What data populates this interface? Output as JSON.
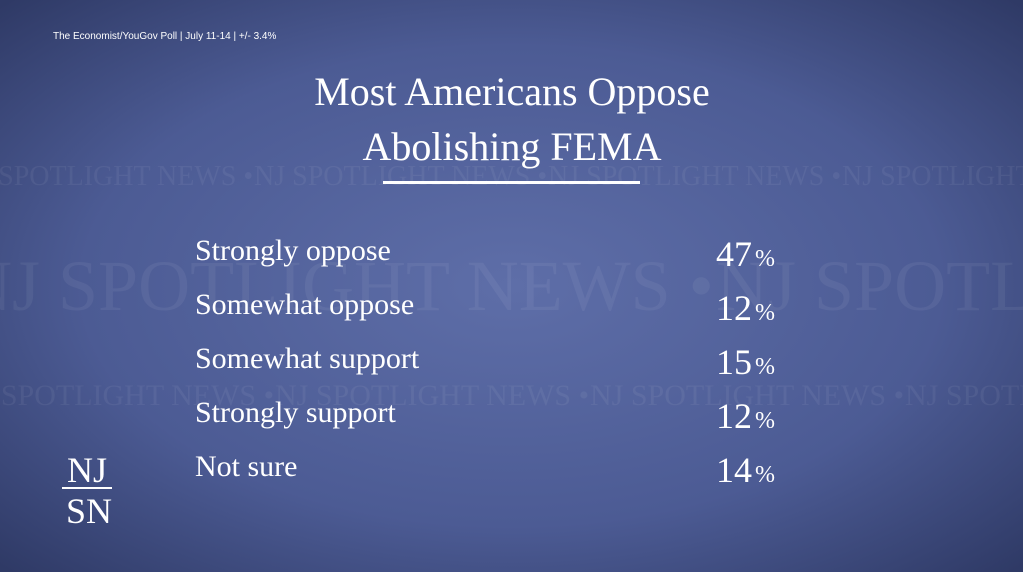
{
  "source": "The Economist/YouGov Poll | July 11-14 | +/- 3.4%",
  "title_lines": [
    "Most Americans Oppose",
    "Abolishing FEMA"
  ],
  "percent_sign": "%",
  "rows": [
    {
      "label": "Strongly oppose",
      "value": 47
    },
    {
      "label": "Somewhat oppose",
      "value": 12
    },
    {
      "label": "Somewhat support",
      "value": 15
    },
    {
      "label": "Strongly support",
      "value": 12
    },
    {
      "label": "Not sure",
      "value": 14
    }
  ],
  "watermark": "NJ SPOTLIGHT NEWS •",
  "logo": [
    "NJ",
    "SN"
  ]
}
